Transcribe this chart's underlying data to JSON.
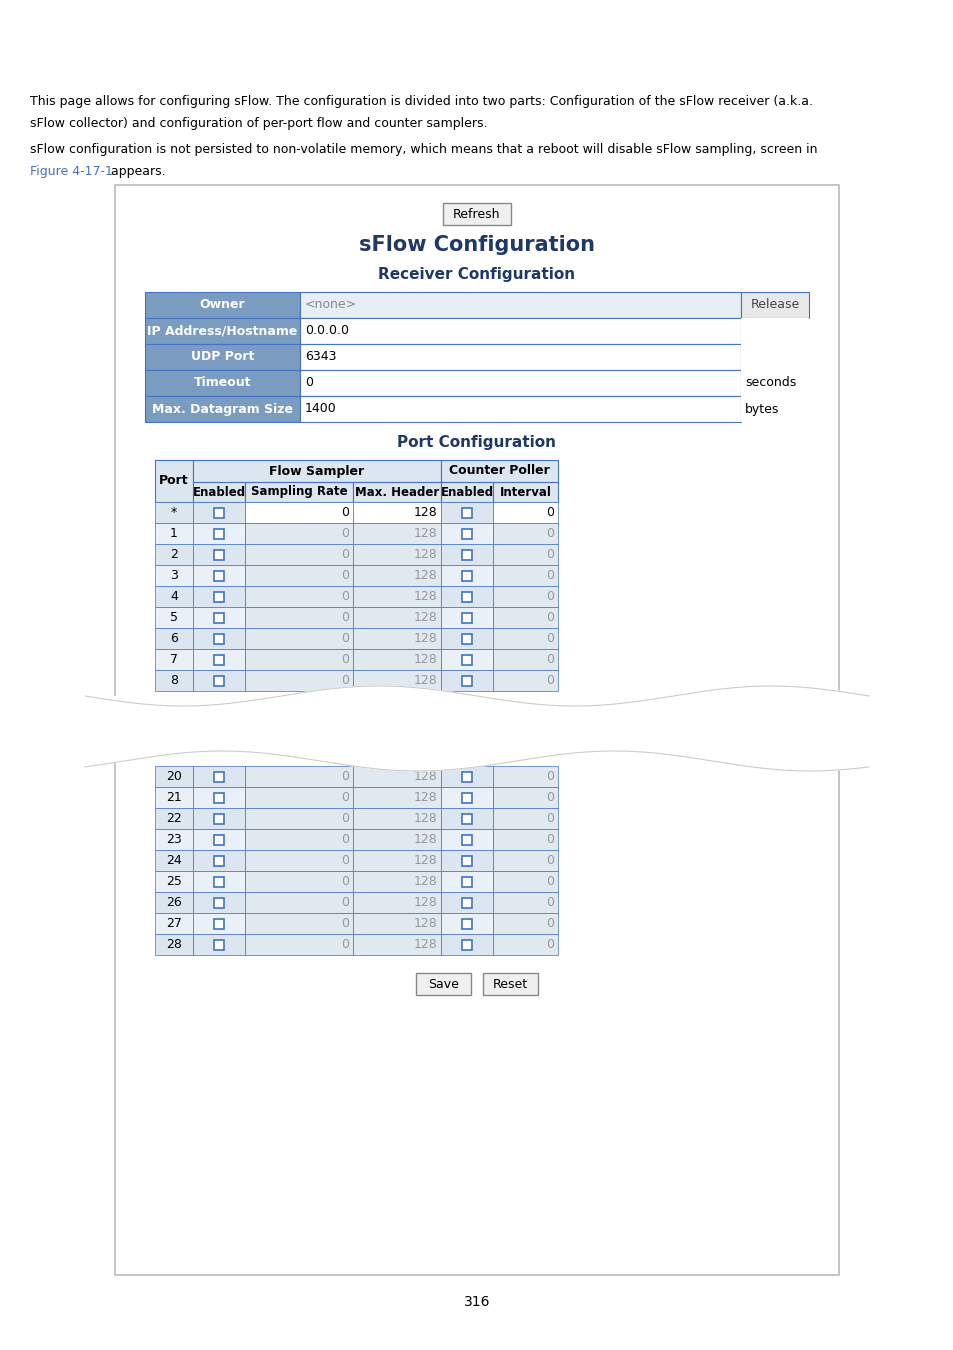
{
  "page_text_line1": "This page allows for configuring sFlow. The configuration is divided into two parts: Configuration of the sFlow receiver (a.k.a.",
  "page_text_line2": "sFlow collector) and configuration of per-port flow and counter samplers.",
  "page_text_line3": "sFlow configuration is not persisted to non-volatile memory, which means that a reboot will disable sFlow sampling, screen in",
  "page_text_line4_link": "Figure 4-17-1",
  "page_text_line4_normal": " appears.",
  "main_title": "sFlow Configuration",
  "receiver_title": "Receiver Configuration",
  "port_title": "Port Configuration",
  "receiver_rows": [
    {
      "label": "Owner",
      "value": "<none>",
      "unit": "",
      "has_release": true
    },
    {
      "label": "IP Address/Hostname",
      "value": "0.0.0.0",
      "unit": "",
      "has_release": false
    },
    {
      "label": "UDP Port",
      "value": "6343",
      "unit": "",
      "has_release": false
    },
    {
      "label": "Timeout",
      "value": "0",
      "unit": "seconds",
      "has_release": false
    },
    {
      "label": "Max. Datagram Size",
      "value": "1400",
      "unit": "bytes",
      "has_release": false
    }
  ],
  "port_rows_top": [
    "*",
    "1",
    "2",
    "3",
    "4",
    "5",
    "6",
    "7",
    "8"
  ],
  "port_rows_bottom": [
    "20",
    "21",
    "22",
    "23",
    "24",
    "25",
    "26",
    "27",
    "28"
  ],
  "page_number": "316",
  "header_bg": "#7a9cc0",
  "row_bg_even": "#dce6f1",
  "row_bg_odd": "#eaf0f8",
  "inp_bg": "#e0e8f0",
  "border_color": "#4472c4",
  "title_color": "#1f3864",
  "link_color": "#4472c4",
  "panel_bg": "#ffffff",
  "hdr_label_bg": "#7a9cc0",
  "release_btn_bg": "#e8e8e8"
}
